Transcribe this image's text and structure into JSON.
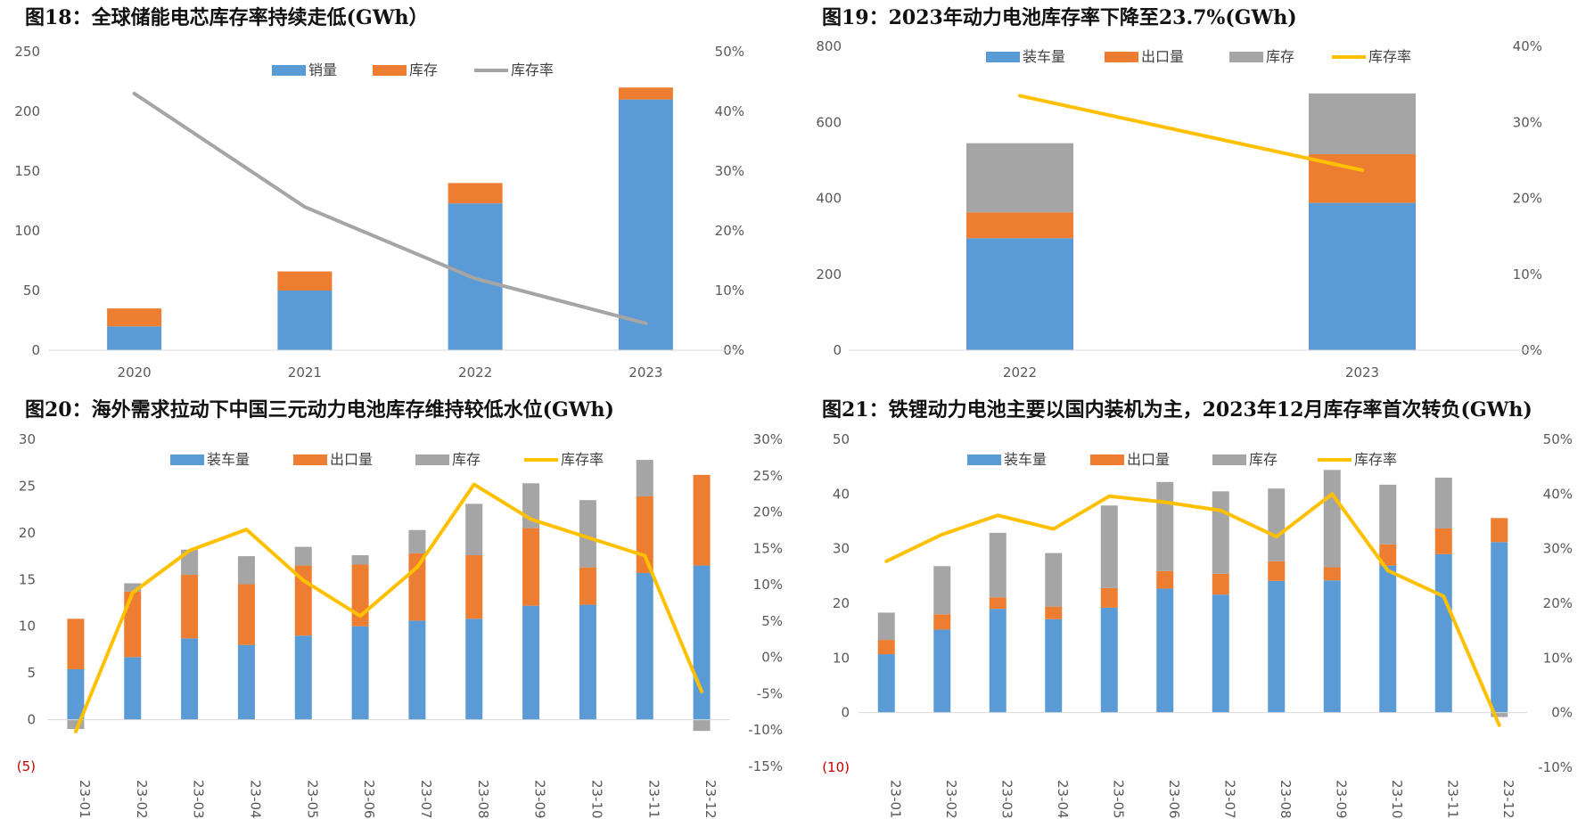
{
  "colors": {
    "blue": "#5b9bd5",
    "orange": "#ed7d31",
    "gray": "#a5a5a5",
    "line_gray": "#a5a5a5",
    "line_yellow": "#ffc000",
    "negative_label": "#c00000"
  },
  "chart_data": [
    {
      "id": "fig18",
      "type": "bar",
      "title": "图18：全球储能电芯库存率持续走低(GWh）",
      "categories": [
        "2020",
        "2021",
        "2022",
        "2023"
      ],
      "series": [
        {
          "name": "销量",
          "values": [
            20,
            50,
            123,
            210
          ],
          "kind": "stacked-bar",
          "color": "#5b9bd5"
        },
        {
          "name": "库存",
          "values": [
            15,
            16,
            17,
            10
          ],
          "kind": "stacked-bar",
          "color": "#ed7d31"
        },
        {
          "name": "库存率",
          "values": [
            43,
            24,
            12,
            4.5
          ],
          "kind": "line",
          "axis": "right",
          "color": "#a5a5a5"
        }
      ],
      "ylim": [
        0,
        250
      ],
      "yticks": [
        "250",
        "200",
        "150",
        "100",
        "50",
        "0"
      ],
      "y2lim": [
        0,
        50
      ],
      "y2ticks": [
        "50%",
        "40%",
        "30%",
        "20%",
        "10%",
        "0%"
      ],
      "legend": [
        "销量",
        "库存",
        "库存率"
      ]
    },
    {
      "id": "fig19",
      "type": "bar",
      "title": "图19：2023年动力电池库存率下降至23.7%(GWh)",
      "categories": [
        "2022",
        "2023"
      ],
      "series": [
        {
          "name": "装车量",
          "values": [
            295,
            388
          ],
          "kind": "stacked-bar",
          "color": "#5b9bd5"
        },
        {
          "name": "出口量",
          "values": [
            68,
            128
          ],
          "kind": "stacked-bar",
          "color": "#ed7d31"
        },
        {
          "name": "库存",
          "values": [
            182,
            160
          ],
          "kind": "stacked-bar",
          "color": "#a5a5a5"
        },
        {
          "name": "库存率",
          "values": [
            33.5,
            23.7
          ],
          "kind": "line",
          "axis": "right",
          "color": "#ffc000"
        }
      ],
      "ylim": [
        0,
        800
      ],
      "yticks": [
        "800",
        "600",
        "400",
        "200",
        "0"
      ],
      "y2lim": [
        0,
        40
      ],
      "y2ticks": [
        "40%",
        "30%",
        "20%",
        "10%",
        "0%"
      ],
      "legend": [
        "装车量",
        "出口量",
        "库存",
        "库存率"
      ]
    },
    {
      "id": "fig20",
      "type": "bar",
      "title": "图20：海外需求拉动下中国三元动力电池库存维持较低水位(GWh)",
      "categories": [
        "23-01",
        "23-02",
        "23-03",
        "23-04",
        "23-05",
        "23-06",
        "23-07",
        "23-08",
        "23-09",
        "23-10",
        "23-11",
        "23-12"
      ],
      "series": [
        {
          "name": "装车量",
          "values": [
            5.4,
            6.7,
            8.7,
            8.0,
            9.0,
            10.0,
            10.6,
            10.8,
            12.2,
            12.3,
            15.7,
            16.5
          ],
          "kind": "stacked-bar",
          "color": "#5b9bd5"
        },
        {
          "name": "出口量",
          "values": [
            5.4,
            7.0,
            6.8,
            6.5,
            7.5,
            6.6,
            7.2,
            6.8,
            8.3,
            4.0,
            8.2,
            9.7
          ],
          "kind": "stacked-bar",
          "color": "#ed7d31"
        },
        {
          "name": "库存",
          "values": [
            -1.0,
            0.9,
            2.7,
            3.0,
            2.0,
            1.0,
            2.5,
            5.5,
            4.8,
            7.2,
            3.9,
            -1.2
          ],
          "kind": "stacked-bar",
          "color": "#a5a5a5"
        },
        {
          "name": "库存率",
          "values": [
            -10.2,
            8.9,
            14.7,
            17.6,
            10.6,
            5.7,
            12.4,
            23.8,
            19.0,
            16.5,
            14.0,
            -4.7
          ],
          "kind": "line",
          "axis": "right",
          "color": "#ffc000"
        }
      ],
      "ylim": [
        -5,
        30
      ],
      "yticks": [
        "30",
        "25",
        "20",
        "15",
        "10",
        "5",
        "0",
        "(5)"
      ],
      "y2lim": [
        -15,
        30
      ],
      "y2ticks": [
        "30%",
        "25%",
        "20%",
        "15%",
        "10%",
        "5%",
        "0%",
        "-5%",
        "-10%",
        "-15%"
      ],
      "legend": [
        "装车量",
        "出口量",
        "库存",
        "库存率"
      ]
    },
    {
      "id": "fig21",
      "type": "bar",
      "title": "图21：铁锂动力电池主要以国内装机为主，2023年12月库存率首次转负(GWh)",
      "categories": [
        "23-01",
        "23-02",
        "23-03",
        "23-04",
        "23-05",
        "23-06",
        "23-07",
        "23-08",
        "23-09",
        "23-10",
        "23-11",
        "23-12"
      ],
      "series": [
        {
          "name": "装车量",
          "values": [
            10.7,
            15.2,
            19.0,
            17.1,
            19.2,
            22.7,
            21.6,
            24.1,
            24.2,
            26.9,
            29.0,
            31.2
          ],
          "kind": "stacked-bar",
          "color": "#5b9bd5"
        },
        {
          "name": "出口量",
          "values": [
            2.6,
            2.8,
            2.1,
            2.3,
            3.6,
            3.2,
            3.8,
            3.6,
            2.4,
            3.9,
            4.7,
            4.4
          ],
          "kind": "stacked-bar",
          "color": "#ed7d31"
        },
        {
          "name": "库存",
          "values": [
            5.0,
            8.8,
            11.8,
            9.8,
            15.1,
            16.3,
            15.1,
            13.3,
            17.8,
            10.9,
            9.3,
            -0.8
          ],
          "kind": "stacked-bar",
          "color": "#a5a5a5"
        },
        {
          "name": "库存率",
          "values": [
            27.7,
            32.6,
            36.1,
            33.6,
            39.6,
            38.5,
            37.0,
            32.2,
            40.0,
            26.0,
            21.3,
            -2.3
          ],
          "kind": "line",
          "axis": "right",
          "color": "#ffc000"
        }
      ],
      "ylim": [
        -10,
        50
      ],
      "yticks": [
        "50",
        "40",
        "30",
        "20",
        "10",
        "0",
        "(10)"
      ],
      "y2lim": [
        -10,
        50
      ],
      "y2ticks": [
        "50%",
        "40%",
        "30%",
        "20%",
        "10%",
        "0%",
        "-10%"
      ],
      "legend": [
        "装车量",
        "出口量",
        "库存",
        "库存率"
      ]
    }
  ]
}
